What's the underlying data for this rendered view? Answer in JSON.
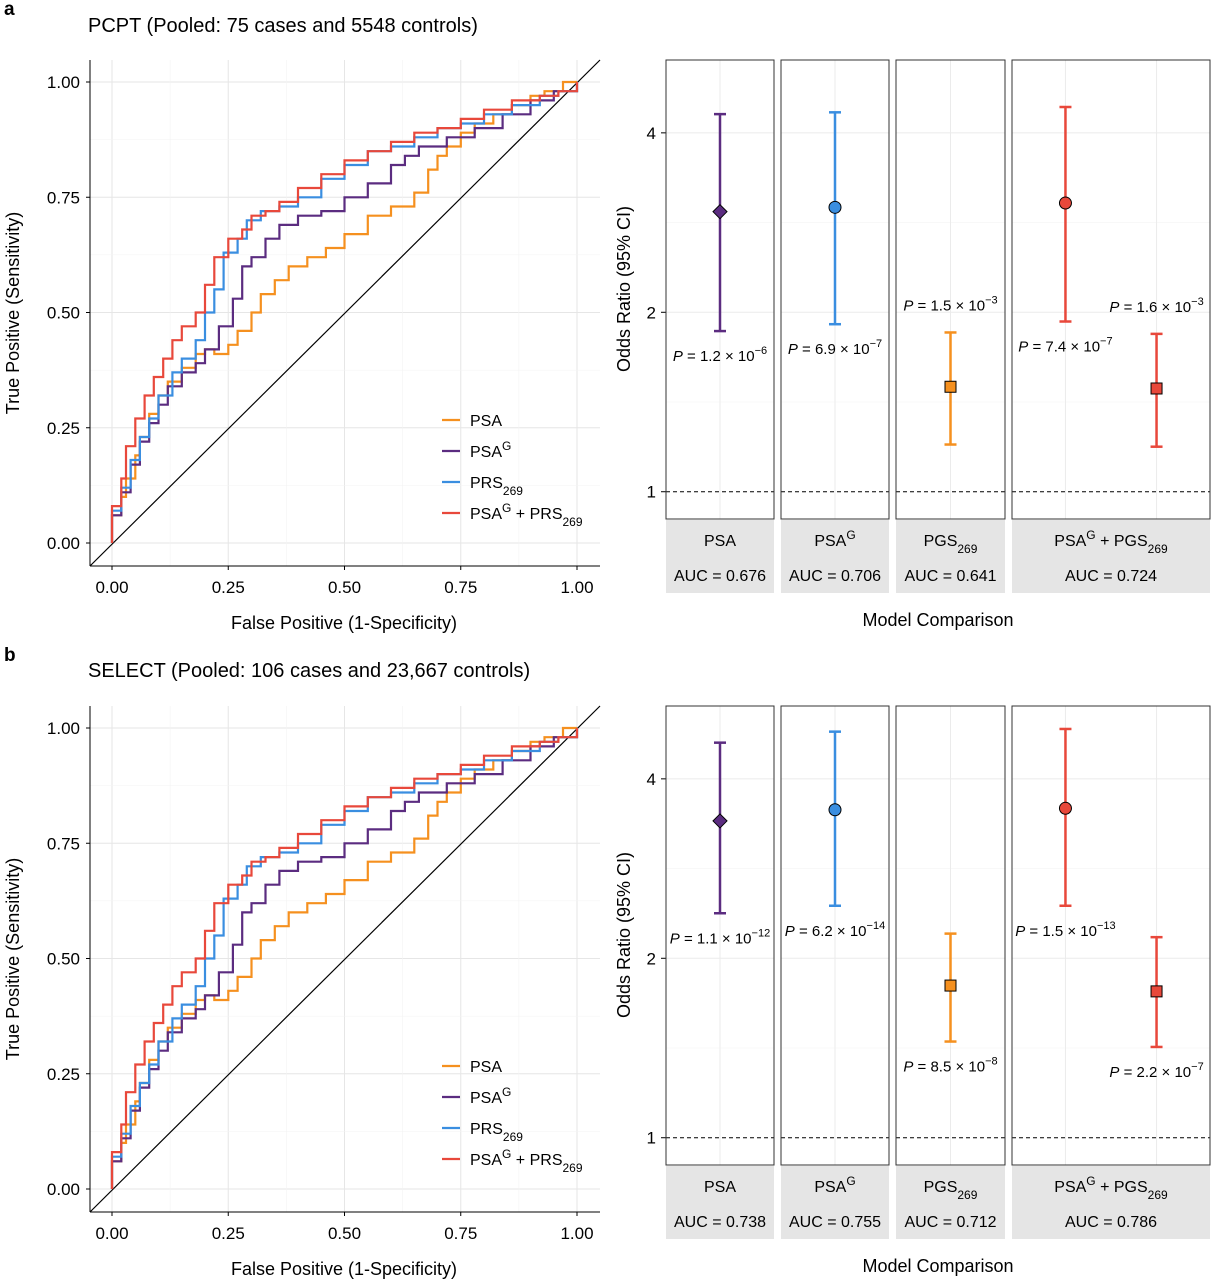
{
  "panels": [
    {
      "letter": "a",
      "title": "PCPT (Pooled: 75 cases and 5548 controls)",
      "roc": {
        "xlabel": "False Positive (1-Specificity)",
        "ylabel": "True Positive (Sensitivity)",
        "ticks": [
          "0.00",
          "0.25",
          "0.50",
          "0.75",
          "1.00"
        ],
        "legend": [
          {
            "base": "PSA",
            "sup": "",
            "sub": "",
            "base2": "",
            "sub2": "",
            "color": "#f5901f"
          },
          {
            "base": "PSA",
            "sup": "G",
            "sub": "",
            "base2": "",
            "sub2": "",
            "color": "#5b2c80"
          },
          {
            "base": "PRS",
            "sup": "",
            "sub": "269",
            "base2": "",
            "sub2": "",
            "color": "#3a8ee0"
          },
          {
            "base": "PSA",
            "sup": "G",
            "sub": "",
            "base2": " + PRS",
            "sub2": "269",
            "color": "#e8483b"
          }
        ]
      },
      "forest": {
        "ylabel": "Odds Ratio (95% CI)",
        "xlabel": "Model Comparison",
        "yticks": [
          "1",
          "2",
          "4"
        ],
        "facets": [
          {
            "name": "PSA",
            "sup": "",
            "sub": "",
            "name2": "",
            "sub2": "",
            "auc": "AUC = 0.676"
          },
          {
            "name": "PSA",
            "sup": "G",
            "sub": "",
            "name2": "",
            "sub2": "",
            "auc": "AUC = 0.706"
          },
          {
            "name": "PGS",
            "sup": "",
            "sub": "269",
            "name2": "",
            "sub2": "",
            "auc": "AUC = 0.641"
          },
          {
            "name": "PSA",
            "sup": "G",
            "sub": "",
            "name2": " + PGS",
            "sub2": "269",
            "auc": "AUC = 0.724"
          }
        ]
      }
    },
    {
      "letter": "b",
      "title": "SELECT (Pooled: 106 cases and 23,667 controls)",
      "roc": {
        "xlabel": "False Positive (1-Specificity)",
        "ylabel": "True Positive (Sensitivity)",
        "ticks": [
          "0.00",
          "0.25",
          "0.50",
          "0.75",
          "1.00"
        ],
        "legend": [
          {
            "base": "PSA",
            "sup": "",
            "sub": "",
            "base2": "",
            "sub2": "",
            "color": "#f5901f"
          },
          {
            "base": "PSA",
            "sup": "G",
            "sub": "",
            "base2": "",
            "sub2": "",
            "color": "#5b2c80"
          },
          {
            "base": "PRS",
            "sup": "",
            "sub": "269",
            "base2": "",
            "sub2": "",
            "color": "#3a8ee0"
          },
          {
            "base": "PSA",
            "sup": "G",
            "sub": "",
            "base2": " + PRS",
            "sub2": "269",
            "color": "#e8483b"
          }
        ]
      },
      "forest": {
        "ylabel": "Odds Ratio (95% CI)",
        "xlabel": "Model Comparison",
        "yticks": [
          "1",
          "2",
          "4"
        ],
        "facets": [
          {
            "name": "PSA",
            "sup": "",
            "sub": "",
            "name2": "",
            "sub2": "",
            "auc": "AUC = 0.738"
          },
          {
            "name": "PSA",
            "sup": "G",
            "sub": "",
            "name2": "",
            "sub2": "",
            "auc": "AUC = 0.755"
          },
          {
            "name": "PGS",
            "sup": "",
            "sub": "269",
            "name2": "",
            "sub2": "",
            "auc": "AUC = 0.712"
          },
          {
            "name": "PSA",
            "sup": "G",
            "sub": "",
            "name2": " + PGS",
            "sub2": "269",
            "auc": "AUC = 0.786"
          }
        ]
      }
    }
  ],
  "chart_data": [
    {
      "type": "line",
      "panel": "a",
      "title": "PCPT (Pooled: 75 cases and 5548 controls)",
      "xlabel": "False Positive (1-Specificity)",
      "ylabel": "True Positive (Sensitivity)",
      "xlim": [
        0,
        1
      ],
      "ylim": [
        0,
        1
      ],
      "grid": true,
      "legend_position": "bottom-right",
      "reference_line": "diagonal",
      "series": [
        {
          "name": "PSA",
          "color": "#f5901f",
          "x": [
            0,
            0,
            0.02,
            0.03,
            0.05,
            0.06,
            0.08,
            0.1,
            0.12,
            0.15,
            0.18,
            0.2,
            0.22,
            0.25,
            0.27,
            0.3,
            0.32,
            0.35,
            0.38,
            0.42,
            0.46,
            0.5,
            0.55,
            0.6,
            0.65,
            0.68,
            0.7,
            0.72,
            0.75,
            0.78,
            0.82,
            0.86,
            0.9,
            0.93,
            0.97,
            1
          ],
          "y": [
            0,
            0.06,
            0.1,
            0.14,
            0.19,
            0.23,
            0.28,
            0.32,
            0.35,
            0.38,
            0.41,
            0.42,
            0.41,
            0.43,
            0.46,
            0.5,
            0.54,
            0.57,
            0.6,
            0.62,
            0.64,
            0.67,
            0.71,
            0.73,
            0.76,
            0.81,
            0.84,
            0.86,
            0.89,
            0.91,
            0.93,
            0.95,
            0.97,
            0.98,
            1,
            1
          ]
        },
        {
          "name": "PSA",
          "sup": "G",
          "color": "#5b2c80",
          "x": [
            0,
            0,
            0.02,
            0.04,
            0.06,
            0.08,
            0.1,
            0.12,
            0.15,
            0.18,
            0.2,
            0.23,
            0.26,
            0.28,
            0.3,
            0.33,
            0.36,
            0.4,
            0.45,
            0.5,
            0.55,
            0.6,
            0.63,
            0.66,
            0.72,
            0.78,
            0.84,
            0.9,
            0.95,
            1
          ],
          "y": [
            0,
            0.06,
            0.11,
            0.17,
            0.22,
            0.26,
            0.3,
            0.34,
            0.37,
            0.39,
            0.42,
            0.47,
            0.53,
            0.6,
            0.62,
            0.66,
            0.69,
            0.71,
            0.72,
            0.75,
            0.78,
            0.82,
            0.84,
            0.86,
            0.88,
            0.9,
            0.93,
            0.96,
            0.98,
            1
          ]
        },
        {
          "name": "PRS",
          "sub": "269",
          "color": "#3a8ee0",
          "x": [
            0,
            0,
            0.02,
            0.04,
            0.06,
            0.08,
            0.1,
            0.13,
            0.15,
            0.18,
            0.2,
            0.22,
            0.24,
            0.27,
            0.29,
            0.32,
            0.36,
            0.4,
            0.45,
            0.5,
            0.55,
            0.6,
            0.65,
            0.7,
            0.75,
            0.8,
            0.86,
            0.92,
            0.96,
            1
          ],
          "y": [
            0,
            0.07,
            0.12,
            0.18,
            0.23,
            0.27,
            0.32,
            0.37,
            0.4,
            0.44,
            0.5,
            0.55,
            0.63,
            0.66,
            0.7,
            0.72,
            0.73,
            0.75,
            0.79,
            0.82,
            0.85,
            0.86,
            0.88,
            0.9,
            0.91,
            0.93,
            0.95,
            0.97,
            0.98,
            1
          ]
        },
        {
          "name": "PSA",
          "sup": "G",
          "base2": " + PRS",
          "sub2": "269",
          "color": "#e8483b",
          "x": [
            0,
            0,
            0.02,
            0.03,
            0.05,
            0.07,
            0.09,
            0.11,
            0.13,
            0.15,
            0.18,
            0.2,
            0.22,
            0.25,
            0.28,
            0.3,
            0.33,
            0.36,
            0.4,
            0.45,
            0.5,
            0.55,
            0.6,
            0.65,
            0.7,
            0.75,
            0.8,
            0.86,
            0.92,
            0.96,
            1
          ],
          "y": [
            0,
            0.08,
            0.14,
            0.21,
            0.27,
            0.32,
            0.36,
            0.4,
            0.44,
            0.47,
            0.5,
            0.56,
            0.62,
            0.66,
            0.68,
            0.71,
            0.72,
            0.74,
            0.77,
            0.8,
            0.83,
            0.85,
            0.87,
            0.89,
            0.9,
            0.92,
            0.94,
            0.96,
            0.97,
            0.98,
            1
          ]
        }
      ]
    },
    {
      "type": "scatter",
      "panel": "a",
      "ylabel": "Odds Ratio (95% CI)",
      "xlabel": "Model Comparison",
      "y_scale": "log2",
      "ylim": [
        0.9,
        5.3
      ],
      "reference_line": 1,
      "points": [
        {
          "facet": "PSA",
          "pos": "center",
          "or": 2.95,
          "lo": 1.86,
          "hi": 4.3,
          "color": "#5b2c80",
          "shape": "diamond",
          "p_text": "1.2",
          "p_exp": "−6",
          "label_pos": "below"
        },
        {
          "facet": "PSA^G",
          "pos": "center",
          "or": 3.0,
          "lo": 1.91,
          "hi": 4.33,
          "color": "#3a8ee0",
          "shape": "circle",
          "p_text": "6.9",
          "p_exp": "−7",
          "label_pos": "below"
        },
        {
          "facet": "PGS_269",
          "pos": "center",
          "or": 1.5,
          "lo": 1.2,
          "hi": 1.85,
          "color": "#f5901f",
          "shape": "square",
          "p_text": "1.5",
          "p_exp": "−3",
          "label_pos": "above"
        },
        {
          "facet": "PSA^G + PGS_269",
          "pos": "left",
          "or": 3.05,
          "lo": 1.93,
          "hi": 4.42,
          "color": "#e8483b",
          "shape": "circle",
          "p_text": "7.4",
          "p_exp": "−7",
          "label_pos": "below"
        },
        {
          "facet": "PSA^G + PGS_269",
          "pos": "right",
          "or": 1.49,
          "lo": 1.19,
          "hi": 1.84,
          "color": "#e8483b",
          "shape": "square",
          "p_text": "1.6",
          "p_exp": "−3",
          "label_pos": "above"
        }
      ],
      "auc": [
        "AUC = 0.676",
        "AUC = 0.706",
        "AUC = 0.641",
        "AUC = 0.724"
      ]
    },
    {
      "type": "line",
      "panel": "b",
      "title": "SELECT (Pooled: 106 cases and 23,667 controls)",
      "xlabel": "False Positive (1-Specificity)",
      "ylabel": "True Positive (Sensitivity)",
      "xlim": [
        0,
        1
      ],
      "ylim": [
        0,
        1
      ],
      "grid": true,
      "legend_position": "bottom-right",
      "reference_line": "diagonal",
      "series": [
        {
          "name": "PSA",
          "color": "#f5901f",
          "x": [
            0,
            0,
            0.02,
            0.03,
            0.05,
            0.06,
            0.08,
            0.1,
            0.12,
            0.15,
            0.18,
            0.2,
            0.22,
            0.25,
            0.27,
            0.3,
            0.32,
            0.35,
            0.38,
            0.42,
            0.46,
            0.5,
            0.55,
            0.6,
            0.65,
            0.68,
            0.7,
            0.72,
            0.75,
            0.78,
            0.82,
            0.86,
            0.9,
            0.93,
            0.97,
            1
          ],
          "y": [
            0,
            0.06,
            0.1,
            0.14,
            0.19,
            0.23,
            0.28,
            0.32,
            0.35,
            0.38,
            0.41,
            0.42,
            0.41,
            0.43,
            0.46,
            0.5,
            0.54,
            0.57,
            0.6,
            0.62,
            0.64,
            0.67,
            0.71,
            0.73,
            0.76,
            0.81,
            0.84,
            0.86,
            0.89,
            0.91,
            0.93,
            0.95,
            0.97,
            0.98,
            1,
            1
          ]
        },
        {
          "name": "PSA",
          "sup": "G",
          "color": "#5b2c80",
          "x": [
            0,
            0,
            0.02,
            0.04,
            0.06,
            0.08,
            0.1,
            0.12,
            0.15,
            0.18,
            0.2,
            0.23,
            0.26,
            0.28,
            0.3,
            0.33,
            0.36,
            0.4,
            0.45,
            0.5,
            0.55,
            0.6,
            0.63,
            0.66,
            0.72,
            0.78,
            0.84,
            0.9,
            0.95,
            1
          ],
          "y": [
            0,
            0.06,
            0.11,
            0.17,
            0.22,
            0.26,
            0.3,
            0.34,
            0.37,
            0.39,
            0.42,
            0.47,
            0.53,
            0.6,
            0.62,
            0.66,
            0.69,
            0.71,
            0.72,
            0.75,
            0.78,
            0.82,
            0.84,
            0.86,
            0.88,
            0.9,
            0.93,
            0.96,
            0.98,
            1
          ]
        },
        {
          "name": "PRS",
          "sub": "269",
          "color": "#3a8ee0",
          "x": [
            0,
            0,
            0.02,
            0.04,
            0.06,
            0.08,
            0.1,
            0.13,
            0.15,
            0.18,
            0.2,
            0.22,
            0.24,
            0.27,
            0.29,
            0.32,
            0.36,
            0.4,
            0.45,
            0.5,
            0.55,
            0.6,
            0.65,
            0.7,
            0.75,
            0.8,
            0.86,
            0.92,
            0.96,
            1
          ],
          "y": [
            0,
            0.07,
            0.12,
            0.18,
            0.23,
            0.27,
            0.32,
            0.37,
            0.4,
            0.44,
            0.5,
            0.55,
            0.63,
            0.66,
            0.7,
            0.72,
            0.73,
            0.75,
            0.79,
            0.82,
            0.85,
            0.86,
            0.88,
            0.9,
            0.91,
            0.93,
            0.95,
            0.97,
            0.98,
            1
          ]
        },
        {
          "name": "PSA",
          "sup": "G",
          "base2": " + PRS",
          "sub2": "269",
          "color": "#e8483b",
          "x": [
            0,
            0,
            0.02,
            0.03,
            0.05,
            0.07,
            0.09,
            0.11,
            0.13,
            0.15,
            0.18,
            0.2,
            0.22,
            0.25,
            0.28,
            0.3,
            0.33,
            0.36,
            0.4,
            0.45,
            0.5,
            0.55,
            0.6,
            0.65,
            0.7,
            0.75,
            0.8,
            0.86,
            0.92,
            0.96,
            1
          ],
          "y": [
            0,
            0.08,
            0.14,
            0.21,
            0.27,
            0.32,
            0.36,
            0.4,
            0.44,
            0.47,
            0.5,
            0.56,
            0.62,
            0.66,
            0.68,
            0.71,
            0.72,
            0.74,
            0.77,
            0.8,
            0.83,
            0.85,
            0.87,
            0.89,
            0.9,
            0.92,
            0.94,
            0.96,
            0.97,
            0.98,
            1
          ]
        }
      ]
    },
    {
      "type": "scatter",
      "panel": "b",
      "ylabel": "Odds Ratio (95% CI)",
      "xlabel": "Model Comparison",
      "y_scale": "log2",
      "ylim": [
        0.9,
        5.3
      ],
      "reference_line": 1,
      "points": [
        {
          "facet": "PSA",
          "pos": "center",
          "or": 3.4,
          "lo": 2.38,
          "hi": 4.6,
          "color": "#5b2c80",
          "shape": "diamond",
          "p_text": "1.1",
          "p_exp": "−12",
          "label_pos": "below"
        },
        {
          "facet": "PSA^G",
          "pos": "center",
          "or": 3.55,
          "lo": 2.45,
          "hi": 4.8,
          "color": "#3a8ee0",
          "shape": "circle",
          "p_text": "6.2",
          "p_exp": "−14",
          "label_pos": "below"
        },
        {
          "facet": "PGS_269",
          "pos": "center",
          "or": 1.8,
          "lo": 1.45,
          "hi": 2.2,
          "color": "#f5901f",
          "shape": "square",
          "p_text": "8.5",
          "p_exp": "−8",
          "label_pos": "below"
        },
        {
          "facet": "PSA^G + PGS_269",
          "pos": "left",
          "or": 3.57,
          "lo": 2.45,
          "hi": 4.85,
          "color": "#e8483b",
          "shape": "circle",
          "p_text": "1.5",
          "p_exp": "−13",
          "label_pos": "below"
        },
        {
          "facet": "PSA^G + PGS_269",
          "pos": "right",
          "or": 1.76,
          "lo": 1.42,
          "hi": 2.17,
          "color": "#e8483b",
          "shape": "square",
          "p_text": "2.2",
          "p_exp": "−7",
          "label_pos": "below"
        }
      ],
      "auc": [
        "AUC = 0.738",
        "AUC = 0.755",
        "AUC = 0.712",
        "AUC = 0.786"
      ]
    }
  ]
}
